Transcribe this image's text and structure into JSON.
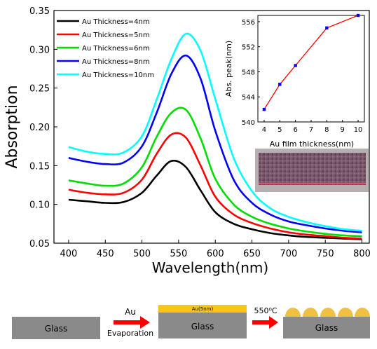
{
  "chart_data": [
    {
      "type": "line",
      "xlabel": "Wavelength(nm)",
      "ylabel": "Absorption",
      "xlim": [
        380,
        810
      ],
      "ylim": [
        0.05,
        0.35
      ],
      "xticks": [
        400,
        450,
        500,
        550,
        600,
        650,
        700,
        750,
        800
      ],
      "yticks": [
        0.05,
        0.1,
        0.15,
        0.2,
        0.25,
        0.3,
        0.35
      ],
      "ytick_labels": [
        "0.05",
        "0.10",
        "0.15",
        "0.20",
        "0.25",
        "0.30",
        "0.35"
      ],
      "legend_position": "top-left",
      "x": [
        400,
        425,
        450,
        475,
        500,
        520,
        540,
        560,
        580,
        600,
        625,
        650,
        675,
        700,
        725,
        750,
        775,
        800
      ],
      "series": [
        {
          "name": "Au Thickness=4nm",
          "color": "#000000",
          "values": [
            0.106,
            0.104,
            0.102,
            0.103,
            0.115,
            0.137,
            0.156,
            0.148,
            0.118,
            0.09,
            0.075,
            0.068,
            0.063,
            0.06,
            0.058,
            0.057,
            0.056,
            0.055
          ]
        },
        {
          "name": "Au Thickness=5nm",
          "color": "#ff0000",
          "values": [
            0.119,
            0.115,
            0.113,
            0.115,
            0.132,
            0.165,
            0.19,
            0.186,
            0.15,
            0.11,
            0.087,
            0.076,
            0.069,
            0.064,
            0.061,
            0.059,
            0.057,
            0.056
          ]
        },
        {
          "name": "Au Thickness=6nm",
          "color": "#00dd00",
          "values": [
            0.131,
            0.127,
            0.124,
            0.127,
            0.148,
            0.187,
            0.218,
            0.222,
            0.185,
            0.133,
            0.1,
            0.084,
            0.075,
            0.069,
            0.065,
            0.062,
            0.06,
            0.059
          ]
        },
        {
          "name": "Au Thickness=8nm",
          "color": "#0000ff",
          "values": [
            0.16,
            0.155,
            0.152,
            0.154,
            0.175,
            0.218,
            0.268,
            0.292,
            0.262,
            0.195,
            0.132,
            0.102,
            0.087,
            0.078,
            0.073,
            0.069,
            0.066,
            0.064
          ]
        },
        {
          "name": "Au Thickness=10nm",
          "color": "#00ffff",
          "values": [
            0.174,
            0.168,
            0.165,
            0.167,
            0.188,
            0.235,
            0.287,
            0.32,
            0.298,
            0.236,
            0.16,
            0.117,
            0.095,
            0.084,
            0.077,
            0.072,
            0.068,
            0.066
          ]
        }
      ]
    },
    {
      "type": "line",
      "xlabel": "Au film thickness(nm)",
      "ylabel": "Abs. peak(nm)",
      "xlim": [
        3.6,
        10.4
      ],
      "ylim": [
        540,
        557
      ],
      "xticks": [
        4,
        5,
        6,
        7,
        8,
        9,
        10
      ],
      "yticks": [
        540,
        544,
        548,
        552,
        556
      ],
      "x": [
        4,
        5,
        6,
        8,
        10
      ],
      "series": [
        {
          "color": "#ff0000",
          "marker_color": "#0000ff",
          "values": [
            542,
            546,
            549,
            555,
            557
          ]
        }
      ]
    }
  ],
  "schematic": {
    "glass_label": "Glass",
    "au_label": "Au",
    "evaporation_label": "Evaporation",
    "film_label": "Au(5nm)",
    "temperature_label": "550⁰C",
    "colors": {
      "glass": "#8a8a8a",
      "gold_film": "#f5c518",
      "particle": "#f0c040",
      "arrow": "#ff0000"
    }
  }
}
